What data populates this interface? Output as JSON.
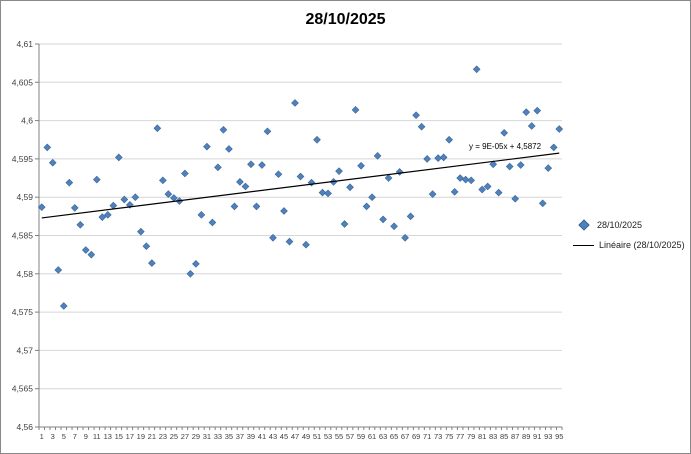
{
  "chart_data": {
    "type": "scatter",
    "title": "28/10/2025",
    "values": [
      4.5887,
      4.5965,
      4.5945,
      4.5805,
      4.5758,
      4.5919,
      4.5886,
      4.5864,
      4.5831,
      4.5825,
      4.5923,
      4.5874,
      4.5877,
      4.5889,
      4.5952,
      4.5897,
      4.589,
      4.59,
      4.5855,
      4.5836,
      4.5814,
      4.599,
      4.5922,
      4.5904,
      4.5899,
      4.5895,
      4.5931,
      4.58,
      4.5813,
      4.5877,
      4.5966,
      4.5867,
      4.5939,
      4.5988,
      4.5963,
      4.5888,
      4.592,
      4.5914,
      4.5943,
      4.5888,
      4.5942,
      4.5986,
      4.5847,
      4.593,
      4.5882,
      4.5842,
      4.6023,
      4.5927,
      4.5838,
      4.5919,
      4.5975,
      4.5906,
      4.5905,
      4.592,
      4.5934,
      4.5865,
      4.5913,
      4.6014,
      4.5941,
      4.5888,
      4.59,
      4.5954,
      4.5871,
      4.5925,
      4.5862,
      4.5933,
      4.5847,
      4.5875,
      4.6007,
      4.5992,
      4.595,
      4.5904,
      4.5951,
      4.5952,
      4.5975,
      4.5907,
      4.5925,
      4.5923,
      4.5922,
      4.6067,
      4.591,
      4.5914,
      4.5943,
      4.5906,
      4.5984,
      4.594,
      4.5898,
      4.5942,
      4.6011,
      4.5993,
      4.6013,
      4.5892,
      4.5938,
      4.5965,
      4.5989
    ],
    "y_axis": {
      "min": 4.56,
      "max": 4.61,
      "step": 0.005,
      "labels": [
        "4,61",
        "4,605",
        "4,6",
        "4,595",
        "4,59",
        "4,585",
        "4,58",
        "4,575",
        "4,57",
        "4,565",
        "4,56"
      ]
    },
    "x_labels": [
      "1",
      "3",
      "5",
      "7",
      "9",
      "11",
      "13",
      "15",
      "17",
      "19",
      "21",
      "23",
      "25",
      "27",
      "29",
      "31",
      "33",
      "35",
      "37",
      "39",
      "41",
      "43",
      "45",
      "47",
      "49",
      "51",
      "53",
      "55",
      "57",
      "59",
      "61",
      "63",
      "65",
      "67",
      "69",
      "71",
      "73",
      "75",
      "77",
      "79",
      "81",
      "83",
      "85",
      "87",
      "89",
      "91",
      "93",
      "95"
    ],
    "trendline": {
      "label": "y = 9E-05x + 4,5872",
      "slope": 9e-05,
      "intercept": 4.5872
    },
    "legend": {
      "position": "right",
      "items": [
        {
          "label": "28/10/2025",
          "marker": "diamond"
        },
        {
          "label": "Linéaire (28/10/2025)",
          "marker": "line"
        }
      ]
    },
    "grid": true,
    "colors": {
      "marker": "#4F81BD",
      "marker_border": "#3B6596",
      "trendline": "#000000",
      "gridline": "#D6D6D6",
      "axis": "#808080",
      "text": "#3F3F3F"
    }
  }
}
